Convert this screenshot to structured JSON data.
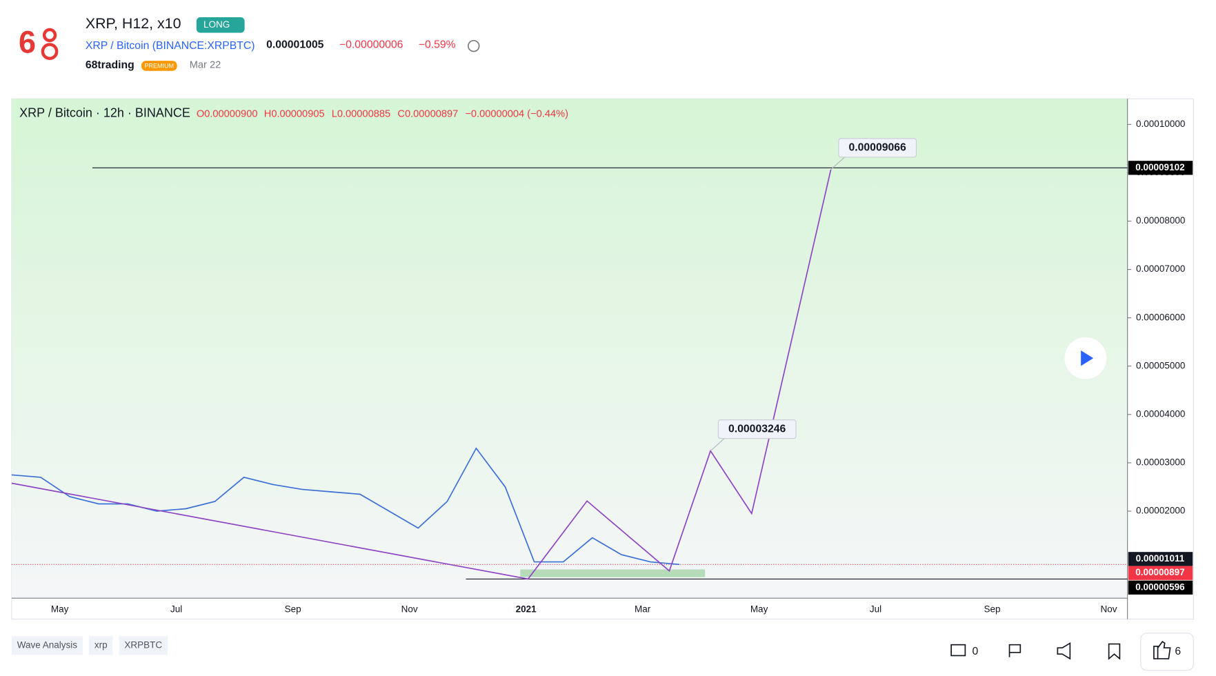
{
  "header": {
    "title": "XRP, H12, x10",
    "badge": "LONG",
    "pair": "XRP / Bitcoin (BINANCE:XRPBTC)",
    "last": "0.00001005",
    "change": "−0.00000006",
    "change_pct": "−0.59%",
    "author": "68trading",
    "author_badge": "PREMIUM",
    "date": "Mar 22"
  },
  "chart": {
    "legend": {
      "title": "XRP / Bitcoin · 12h · BINANCE",
      "ohlc": [
        "O0.00000900",
        "H0.00000905",
        "L0.00000885",
        "C0.00000897",
        "−0.00000004 (−0.44%)"
      ]
    },
    "ylim": [
      2e-06,
      0.0001053
    ],
    "yticks": [
      {
        "value": 2e-05,
        "label": "0.00002000"
      },
      {
        "value": 3e-05,
        "label": "0.00003000"
      },
      {
        "value": 4e-05,
        "label": "0.00004000"
      },
      {
        "value": 5e-05,
        "label": "0.00005000"
      },
      {
        "value": 6e-05,
        "label": "0.00006000"
      },
      {
        "value": 7e-05,
        "label": "0.00007000"
      },
      {
        "value": 8e-05,
        "label": "0.00008000"
      },
      {
        "value": 9e-05,
        "label": "0.00009000"
      },
      {
        "value": 0.0001,
        "label": "0.00010000"
      }
    ],
    "x_labels": [
      "May",
      "Jul",
      "Sep",
      "Nov",
      "2021",
      "Mar",
      "May",
      "Jul",
      "Sep",
      "Nov"
    ],
    "price": {
      "color": "#3a6fd8",
      "values": [
        2.75e-05,
        2.7e-05,
        2.3e-05,
        2.15e-05,
        2.15e-05,
        2e-05,
        2.05e-05,
        2.2e-05,
        2.7e-05,
        2.55e-05,
        2.45e-05,
        2.4e-05,
        2.35e-05,
        2e-05,
        1.65e-05,
        2.2e-05,
        3.3e-05,
        2.5e-05,
        9.5e-06,
        9.5e-06,
        1.45e-05,
        1.1e-05,
        9.5e-06,
        8.97e-06
      ]
    },
    "projection": {
      "color": "#8e44c4",
      "values": [
        2.578e-05,
        5.96e-06,
        2.21e-05,
        7.63e-06,
        3.246e-05,
        1.95e-05,
        9.066e-05
      ],
      "labels": [
        {
          "index": 4,
          "label": "0.00003246"
        },
        {
          "index": 6,
          "label": "0.00009066"
        }
      ]
    },
    "levels": [
      {
        "value": 9.102e-05,
        "label": "0.00009102"
      },
      {
        "value": 5.96e-06,
        "label": "0.00000596"
      }
    ],
    "badges": [
      {
        "value": 1.011e-05,
        "label": "0.00001011",
        "color": "#131722"
      },
      {
        "value": 8.97e-06,
        "label": "0.00000897",
        "color": "#f23645"
      }
    ]
  },
  "tags": [
    "Wave Analysis",
    "xrp",
    "XRPBTC"
  ],
  "actions": {
    "comments": 0,
    "likes": 6
  }
}
